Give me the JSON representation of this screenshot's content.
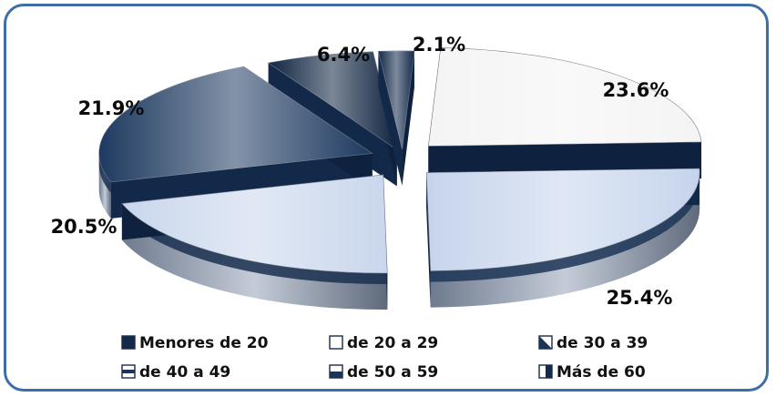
{
  "chart_data": {
    "type": "pie",
    "style": "3d-exploded",
    "categories": [
      "Menores de 20",
      "de 20 a 29",
      "de 30 a 39",
      "de 40 a 49",
      "de 50 a 59",
      "Más de 60"
    ],
    "values": [
      2.1,
      23.6,
      25.4,
      20.5,
      21.9,
      6.4
    ],
    "data_labels": [
      "2.1%",
      "23.6%",
      "25.4%",
      "20.5%",
      "21.9%",
      "6.4%"
    ],
    "unit": "%",
    "legend_position": "bottom",
    "colors": {
      "Menores de 20": "#142a4a",
      "de 20 a 29": "#f4f4f4",
      "de 30 a 39": "#1c3556",
      "de 40 a 49": "#c9d6ec",
      "de 50 a 59": "#d0dcf0",
      "Más de 60": "#0f2440"
    }
  },
  "legend": {
    "items": [
      {
        "label": "Menores de 20",
        "swatch": "solid-dark"
      },
      {
        "label": "de 20 a 29",
        "swatch": "white"
      },
      {
        "label": "de 30 a 39",
        "swatch": "diagonal"
      },
      {
        "label": "de 40 a 49",
        "swatch": "striped-light"
      },
      {
        "label": "de 50 a 59",
        "swatch": "half-light"
      },
      {
        "label": "Más de 60",
        "swatch": "half-dark"
      }
    ]
  }
}
